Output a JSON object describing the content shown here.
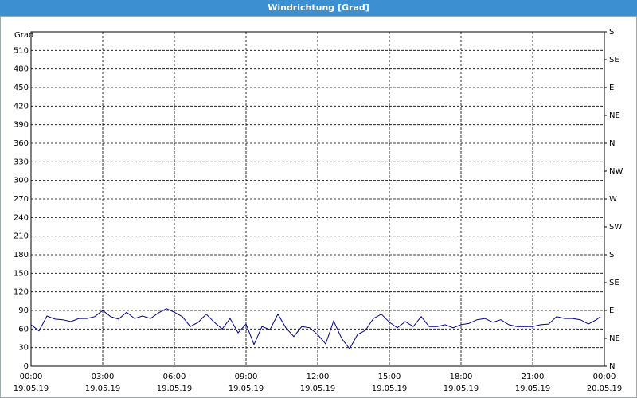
{
  "window_title": "Windrichtung [Grad]",
  "chart_data": {
    "type": "line",
    "ylabel": "Grad",
    "x": [
      0,
      20,
      40,
      60,
      80,
      100,
      120,
      140,
      160,
      180,
      200,
      220,
      240,
      260,
      280,
      300,
      320,
      340,
      360,
      380,
      400,
      420,
      440,
      460,
      480,
      500,
      520,
      540,
      560,
      580,
      600,
      620,
      640,
      660,
      680,
      700,
      720,
      740,
      760,
      780,
      800,
      820,
      840,
      860,
      880,
      900,
      920,
      940,
      960,
      980,
      1000,
      1020,
      1040,
      1060,
      1080,
      1100,
      1120,
      1140,
      1160,
      1180,
      1200,
      1220,
      1240,
      1260,
      1280,
      1300,
      1320,
      1340,
      1360,
      1380,
      1400,
      1420,
      1430
    ],
    "series": [
      {
        "name": "Windrichtung",
        "color": "#00008b",
        "values": [
          67,
          57,
          81,
          76,
          75,
          72,
          77,
          77,
          80,
          90,
          80,
          76,
          87,
          77,
          81,
          77,
          86,
          93,
          87,
          80,
          64,
          71,
          84,
          71,
          60,
          77,
          54,
          68,
          35,
          64,
          59,
          84,
          62,
          48,
          64,
          62,
          51,
          36,
          73,
          45,
          28,
          51,
          58,
          77,
          84,
          71,
          62,
          72,
          64,
          80,
          64,
          64,
          67,
          62,
          67,
          69,
          75,
          77,
          71,
          75,
          67,
          64,
          64,
          64,
          67,
          68,
          80,
          77,
          77,
          75,
          68,
          75,
          80
        ]
      }
    ],
    "xlim": [
      0,
      1440
    ],
    "xticks": [
      {
        "value": 0,
        "label": "00:00\n19.05.19"
      },
      {
        "value": 180,
        "label": "03:00\n19.05.19"
      },
      {
        "value": 360,
        "label": "06:00\n19.05.19"
      },
      {
        "value": 540,
        "label": "09:00\n19.05.19"
      },
      {
        "value": 720,
        "label": "12:00\n19.05.19"
      },
      {
        "value": 900,
        "label": "15:00\n19.05.19"
      },
      {
        "value": 1080,
        "label": "18:00\n19.05.19"
      },
      {
        "value": 1260,
        "label": "21:00\n19.05.19"
      },
      {
        "value": 1440,
        "label": "00:00\n20.05.19"
      }
    ],
    "ylim": [
      0,
      540
    ],
    "yticks": [
      0,
      30,
      60,
      90,
      120,
      150,
      180,
      210,
      240,
      270,
      300,
      330,
      360,
      390,
      420,
      450,
      480,
      510
    ],
    "y2lim": [
      0,
      540
    ],
    "y2ticks": [
      {
        "value": 0,
        "label": "N"
      },
      {
        "value": 45,
        "label": "NE"
      },
      {
        "value": 90,
        "label": "E"
      },
      {
        "value": 135,
        "label": "SE"
      },
      {
        "value": 180,
        "label": "S"
      },
      {
        "value": 225,
        "label": "SW"
      },
      {
        "value": 270,
        "label": "W"
      },
      {
        "value": 315,
        "label": "NW"
      },
      {
        "value": 360,
        "label": "N"
      },
      {
        "value": 405,
        "label": "NE"
      },
      {
        "value": 450,
        "label": "E"
      },
      {
        "value": 495,
        "label": "SE"
      },
      {
        "value": 540,
        "label": "S"
      }
    ],
    "grid": true
  }
}
